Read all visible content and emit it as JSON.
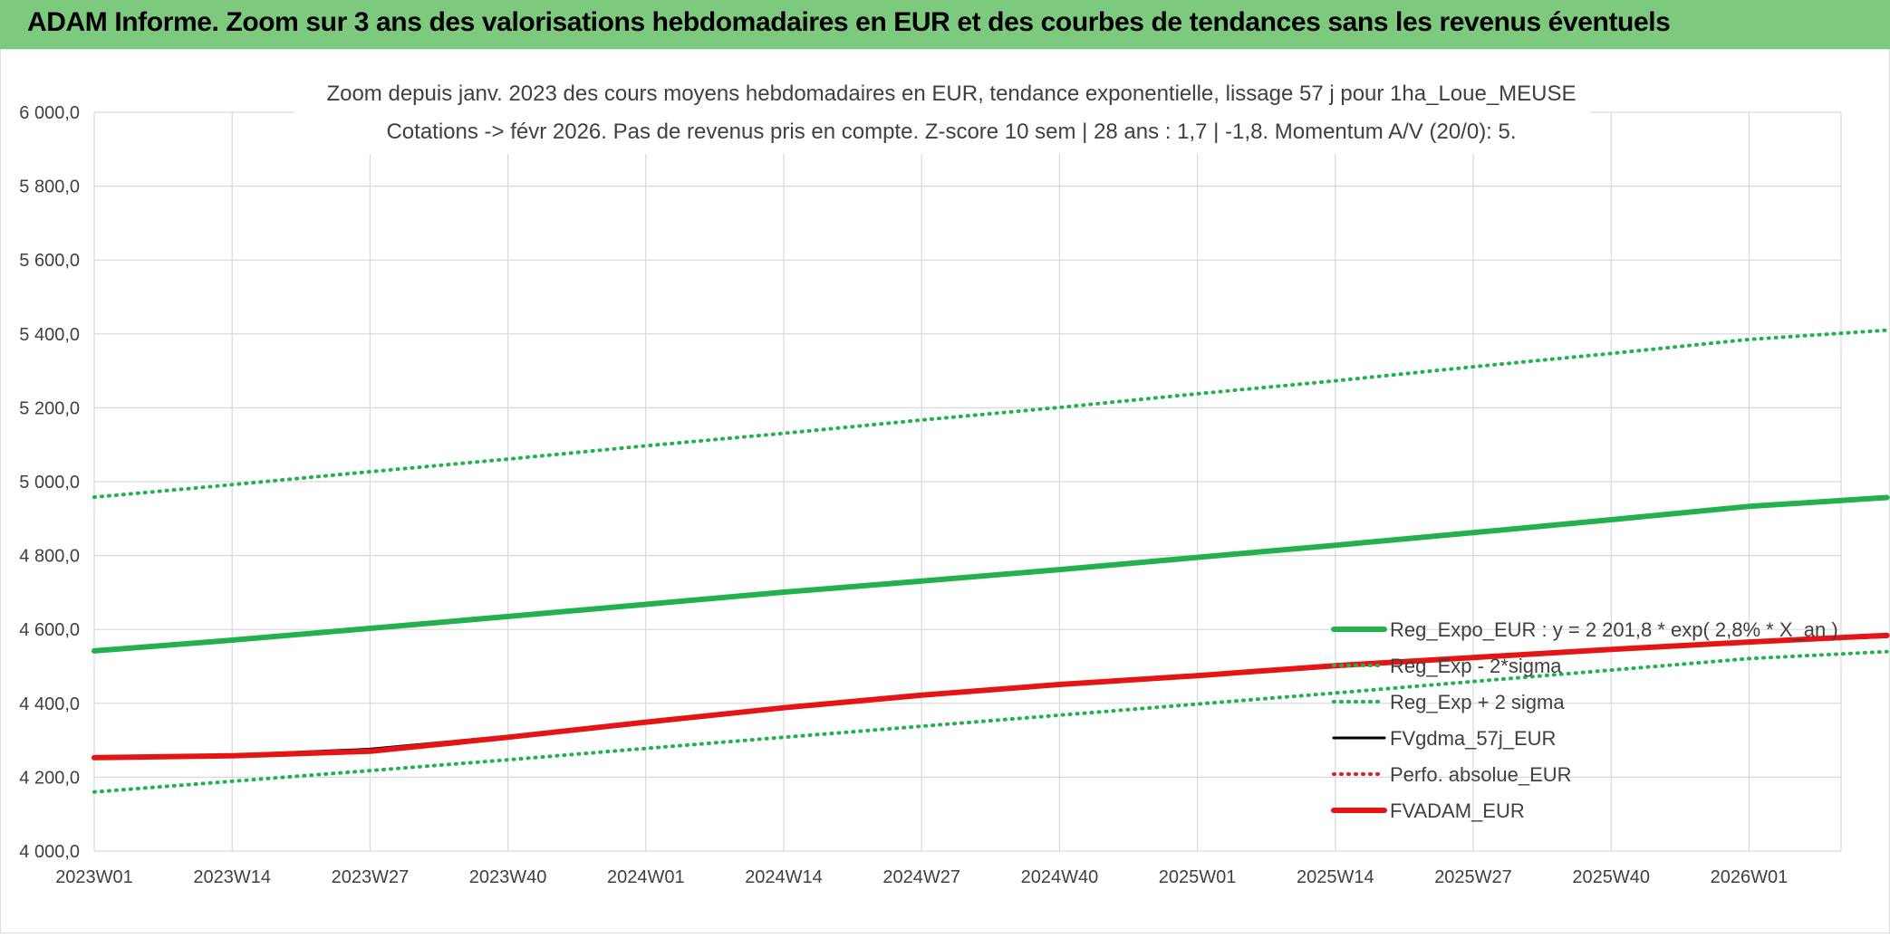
{
  "header": {
    "title": "ADAM Informe. Zoom sur 3 ans des valorisations hebdomadaires en EUR et des courbes de tendances sans les revenus éventuels"
  },
  "colors": {
    "header_bg": "#7dc97d",
    "reg_expo": "#22b14c",
    "bands": "#22b14c",
    "fvgdma": "#000000",
    "perfo": "#e02020",
    "fvadam": "#e51515",
    "grid": "#d9d9d9"
  },
  "chart_data": {
    "type": "line",
    "title_line1": "Zoom depuis janv. 2023 des cours moyens hebdomadaires en EUR, tendance exponentielle, lissage 57 j pour 1ha_Loue_MEUSE",
    "title_line2": "Cotations -> févr 2026. Pas de revenus pris en compte. Z-score 10 sem | 28 ans : 1,7 | -1,8. Momentum A/V (20/0): 5.",
    "xlabel": "",
    "ylabel": "",
    "ylim": [
      4000,
      6000
    ],
    "y_ticks": [
      "6 000,0",
      "5 800,0",
      "5 600,0",
      "5 400,0",
      "5 200,0",
      "5 000,0",
      "4 800,0",
      "4 600,0",
      "4 400,0",
      "4 200,0",
      "4 000,0"
    ],
    "x_ticks": [
      "2023W01",
      "2023W14",
      "2023W27",
      "2023W40",
      "2024W01",
      "2024W14",
      "2024W27",
      "2024W40",
      "2025W01",
      "2025W14",
      "2025W27",
      "2025W40",
      "2026W01"
    ],
    "grid": true,
    "legend_position": "right",
    "x": [
      "2023W01",
      "2023W14",
      "2023W27",
      "2023W40",
      "2024W01",
      "2024W14",
      "2024W27",
      "2024W40",
      "2025W01",
      "2025W14",
      "2025W27",
      "2025W40",
      "2026W01",
      "2026W08"
    ],
    "series": [
      {
        "name": "Reg_Expo_EUR : y = 2 201,8 * exp( 2,8% * X_an )",
        "style": "solid-thick",
        "color": "#22b14c",
        "values": [
          4542,
          4571,
          4603,
          4635,
          4668,
          4701,
          4731,
          4762,
          4795,
          4828,
          4862,
          4897,
          4933,
          4957
        ]
      },
      {
        "name": "Reg_Exp - 2*sigma",
        "style": "dotted",
        "color": "#22b14c",
        "values": [
          4160,
          4189,
          4218,
          4247,
          4278,
          4308,
          4338,
          4368,
          4398,
          4428,
          4459,
          4490,
          4521,
          4540
        ]
      },
      {
        "name": "Reg_Exp + 2 sigma",
        "style": "dotted",
        "color": "#22b14c",
        "values": [
          4958,
          4992,
          5027,
          5061,
          5097,
          5131,
          5167,
          5201,
          5238,
          5273,
          5311,
          5347,
          5385,
          5410
        ]
      },
      {
        "name": "FVgdma_57j_EUR",
        "style": "solid",
        "color": "#000000",
        "values": [
          4255,
          4260,
          4276,
          4311,
          4350,
          4389,
          4425,
          4452,
          4476,
          4503,
          4525,
          4547,
          4567,
          4580
        ]
      },
      {
        "name": "Perfo. absolue_EUR",
        "style": "dotted",
        "color": "#e02020",
        "values": [
          4255,
          4258,
          4271,
          4309,
          4350,
          4389,
          4423,
          4451,
          4475,
          4502,
          4524,
          4546,
          4566,
          4582
        ]
      },
      {
        "name": "FVADAM_EUR",
        "style": "solid-thick",
        "color": "#e51515",
        "values": [
          4253,
          4258,
          4270,
          4308,
          4349,
          4388,
          4422,
          4451,
          4475,
          4502,
          4524,
          4546,
          4566,
          4584
        ]
      }
    ]
  }
}
